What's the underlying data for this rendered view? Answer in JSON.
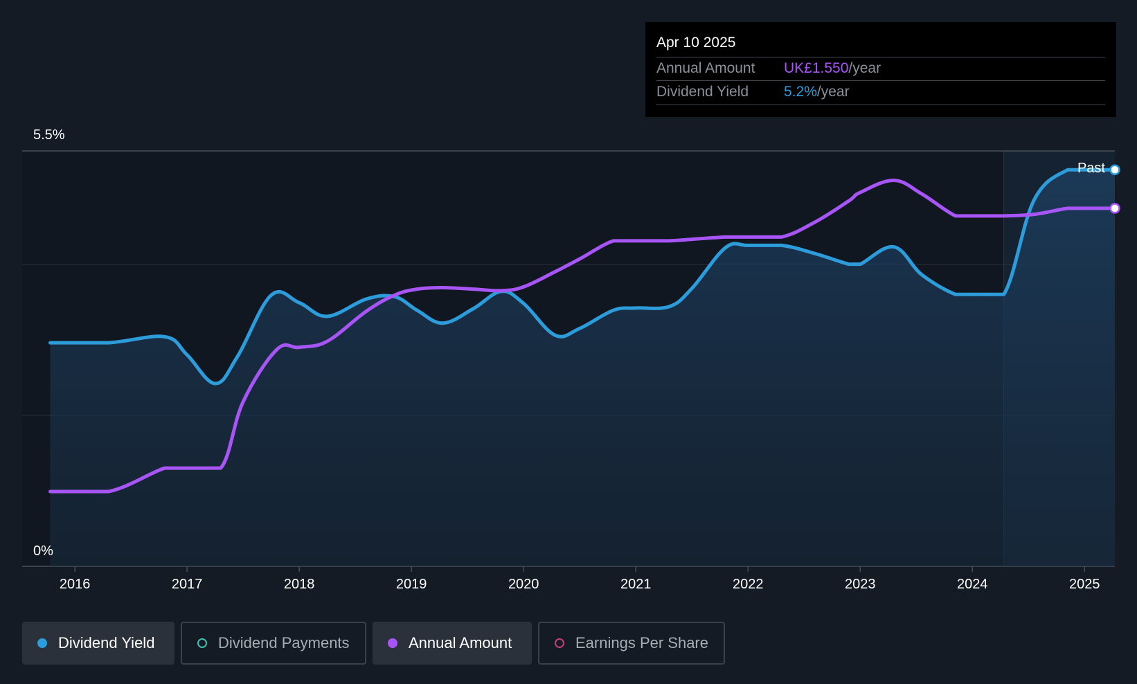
{
  "tooltip": {
    "date": "Apr 10 2025",
    "rows": [
      {
        "label": "Annual Amount",
        "value": "UK£1.550",
        "unit": "/year",
        "color": "#a855f7"
      },
      {
        "label": "Dividend Yield",
        "value": "5.2%",
        "unit": "/year",
        "color": "#2d9cdb"
      }
    ]
  },
  "legend": [
    {
      "label": "Dividend Yield",
      "active": true,
      "color": "#2d9cdb"
    },
    {
      "label": "Dividend Payments",
      "active": false,
      "color": "#3fc1b0"
    },
    {
      "label": "Annual Amount",
      "active": true,
      "color": "#a855f7"
    },
    {
      "label": "Earnings Per Share",
      "active": false,
      "color": "#c2417a"
    }
  ],
  "chart_data": {
    "type": "line",
    "past_label": "Past",
    "y_axis": {
      "top_label": "5.5%",
      "bottom_label": "0%",
      "ylim": [
        0,
        5.5
      ]
    },
    "x_ticks": [
      "2016",
      "2017",
      "2018",
      "2019",
      "2020",
      "2021",
      "2022",
      "2023",
      "2024",
      "2025"
    ],
    "xlim": [
      2015.53,
      2025.27
    ],
    "past_start": 2024.28,
    "series": [
      {
        "name": "Dividend Yield",
        "color": "#2d9cdb",
        "filled": true,
        "x": [
          2015.78,
          2016.3,
          2016.8,
          2017.0,
          2017.25,
          2017.45,
          2017.75,
          2018.0,
          2018.25,
          2018.6,
          2018.85,
          2019.05,
          2019.28,
          2019.55,
          2019.8,
          2020.0,
          2020.28,
          2020.5,
          2020.8,
          2021.0,
          2021.3,
          2021.5,
          2021.8,
          2022.0,
          2022.3,
          2022.6,
          2022.9,
          2023.0,
          2023.3,
          2023.55,
          2023.85,
          2024.0,
          2024.28,
          2024.55,
          2024.85,
          2025.0,
          2025.27
        ],
        "y": [
          2.96,
          2.96,
          3.04,
          2.8,
          2.42,
          2.78,
          3.59,
          3.49,
          3.31,
          3.54,
          3.57,
          3.39,
          3.22,
          3.41,
          3.64,
          3.48,
          3.06,
          3.15,
          3.39,
          3.42,
          3.44,
          3.68,
          4.22,
          4.25,
          4.25,
          4.14,
          4.0,
          4.0,
          4.23,
          3.86,
          3.6,
          3.6,
          3.6,
          4.85,
          5.25,
          5.25,
          5.25
        ]
      },
      {
        "name": "Annual Amount",
        "color": "#a855f7",
        "filled": false,
        "x": [
          2015.78,
          2016.3,
          2016.8,
          2017.0,
          2017.3,
          2017.5,
          2017.8,
          2018.0,
          2018.25,
          2018.6,
          2018.85,
          2019.05,
          2019.28,
          2019.55,
          2019.8,
          2020.0,
          2020.28,
          2020.5,
          2020.8,
          2021.0,
          2021.3,
          2021.5,
          2021.8,
          2022.0,
          2022.3,
          2022.6,
          2022.9,
          2023.0,
          2023.3,
          2023.55,
          2023.85,
          2024.0,
          2024.28,
          2024.55,
          2024.85,
          2025.0,
          2025.27
        ],
        "y": [
          0.99,
          0.99,
          1.3,
          1.3,
          1.3,
          2.18,
          2.87,
          2.9,
          2.98,
          3.38,
          3.59,
          3.67,
          3.69,
          3.67,
          3.65,
          3.7,
          3.9,
          4.07,
          4.31,
          4.31,
          4.31,
          4.33,
          4.36,
          4.36,
          4.36,
          4.56,
          4.84,
          4.95,
          5.11,
          4.93,
          4.64,
          4.64,
          4.64,
          4.66,
          4.74,
          4.74,
          4.74
        ]
      }
    ]
  }
}
